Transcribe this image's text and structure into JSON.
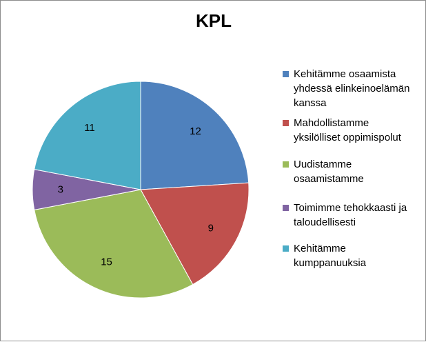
{
  "chart_data": {
    "type": "pie",
    "title": "KPL",
    "legend_position": "right",
    "categories": [
      "Kehitämme osaamista yhdessä elinkeinoelämän kanssa",
      "Mahdollistamme yksilölliset oppimispolut",
      "Uudistamme osaamistamme",
      "Toimimme tehokkaasti ja taloudellisesti",
      "Kehitämme kumppanuuksia"
    ],
    "legend_lines": [
      [
        "Kehitämme osaamista",
        "yhdessä elinkeinoelämän",
        "kanssa"
      ],
      [
        "Mahdollistamme",
        "yksilölliset oppimispolut"
      ],
      [
        "Uudistamme",
        "osaamistamme"
      ],
      [
        "Toimimme tehokkaasti ja",
        "taloudellisesti"
      ],
      [
        "Kehitämme",
        "kumppanuuksia"
      ]
    ],
    "values": [
      12,
      9,
      15,
      3,
      11
    ],
    "colors": [
      "#4f81bd",
      "#c0504d",
      "#9bbb59",
      "#8064a2",
      "#4bacc6"
    ],
    "start_angle_deg": 0,
    "direction": "clockwise"
  }
}
